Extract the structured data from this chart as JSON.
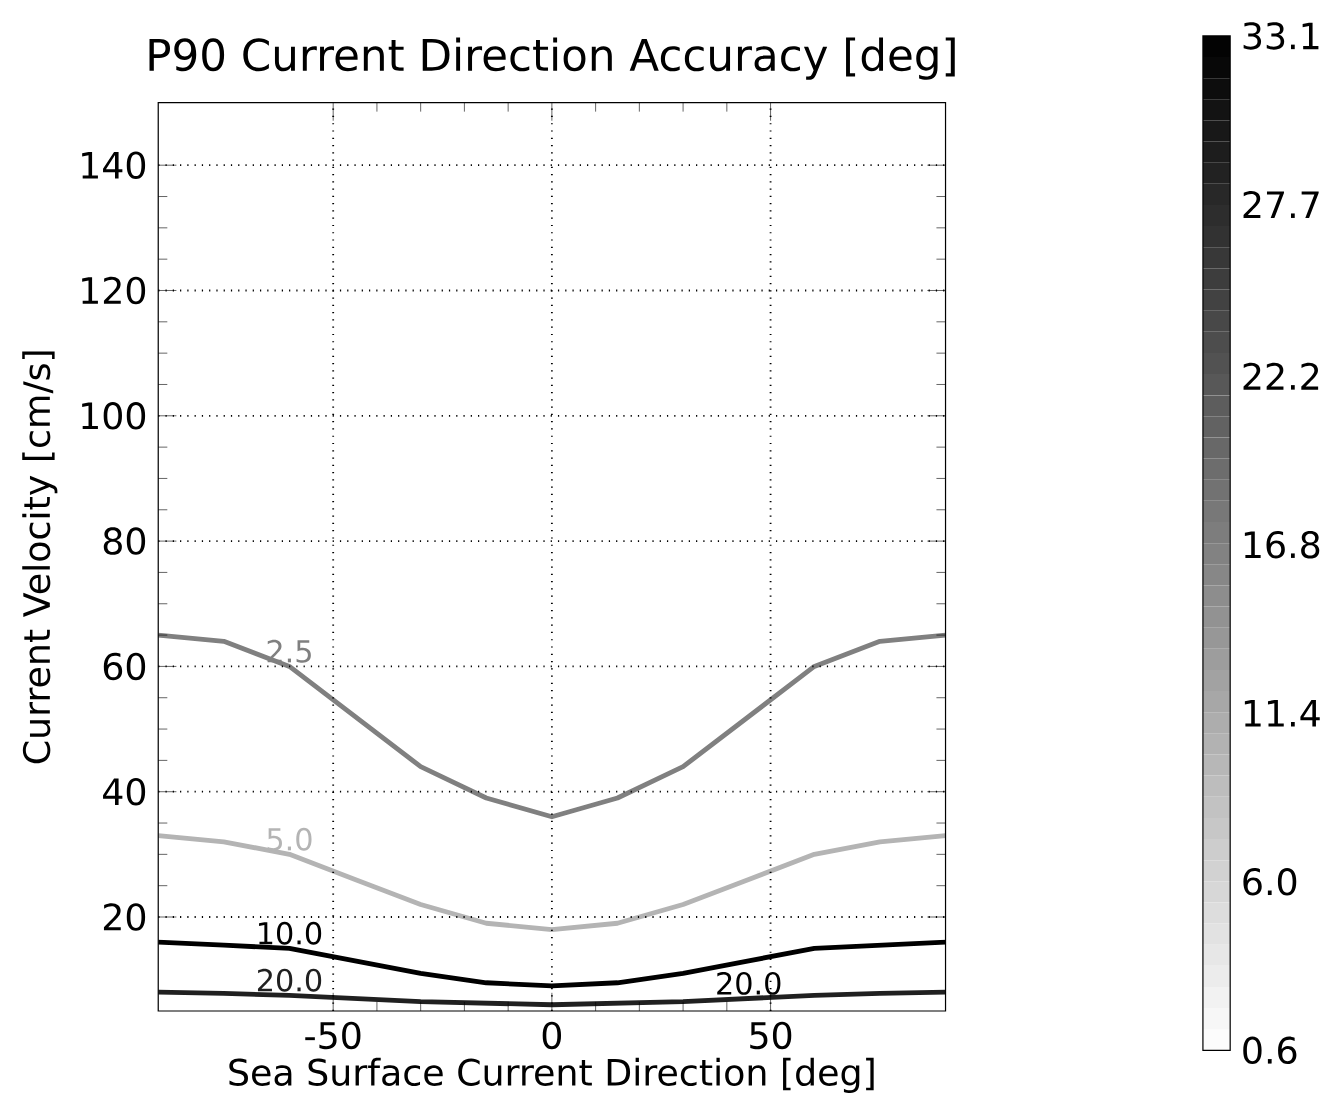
{
  "chart_data": {
    "type": "line",
    "title": "P90 Current Direction Accuracy [deg]",
    "xlabel": "Sea Surface Current Direction [deg]",
    "ylabel": "Current Velocity [cm/s]",
    "xlim": [
      -90,
      90
    ],
    "ylim": [
      5,
      150
    ],
    "xticks": [
      -50,
      0,
      50
    ],
    "yticks": [
      20,
      40,
      60,
      80,
      100,
      120,
      140
    ],
    "grid": true,
    "clim": [
      0.6,
      33.1
    ],
    "cticks": [
      0.6,
      {
        "value": 6.0,
        "label": "6.0"
      },
      11.4,
      16.8,
      22.2,
      27.7,
      33.1
    ],
    "series": [
      {
        "name": "2.5",
        "color": "#808080",
        "x": [
          -90,
          -75,
          -60,
          -45,
          -30,
          -15,
          0,
          15,
          30,
          45,
          60,
          75,
          90
        ],
        "values": [
          65,
          64,
          60,
          52,
          44,
          39,
          36,
          39,
          44,
          52,
          60,
          64,
          65
        ]
      },
      {
        "name": "5.0",
        "color": "#b4b4b4",
        "x": [
          -90,
          -75,
          -60,
          -45,
          -30,
          -15,
          0,
          15,
          30,
          45,
          60,
          75,
          90
        ],
        "values": [
          33,
          32,
          30,
          26,
          22,
          19,
          18,
          19,
          22,
          26,
          30,
          32,
          33
        ]
      },
      {
        "name": "10.0",
        "color": "#000000",
        "x": [
          -90,
          -75,
          -60,
          -45,
          -30,
          -15,
          0,
          15,
          30,
          45,
          60,
          75,
          90
        ],
        "values": [
          16,
          15.5,
          15,
          13,
          11,
          9.5,
          9,
          9.5,
          11,
          13,
          15,
          15.5,
          16
        ]
      },
      {
        "name": "20.0",
        "color": "#202020",
        "x": [
          -90,
          -75,
          -60,
          -30,
          0,
          30,
          60,
          75,
          90
        ],
        "values": [
          8,
          7.8,
          7.5,
          6.5,
          6,
          6.5,
          7.5,
          7.8,
          8
        ]
      }
    ],
    "annotations": [
      {
        "text": "20.0",
        "x": 45,
        "y": 7
      }
    ]
  }
}
